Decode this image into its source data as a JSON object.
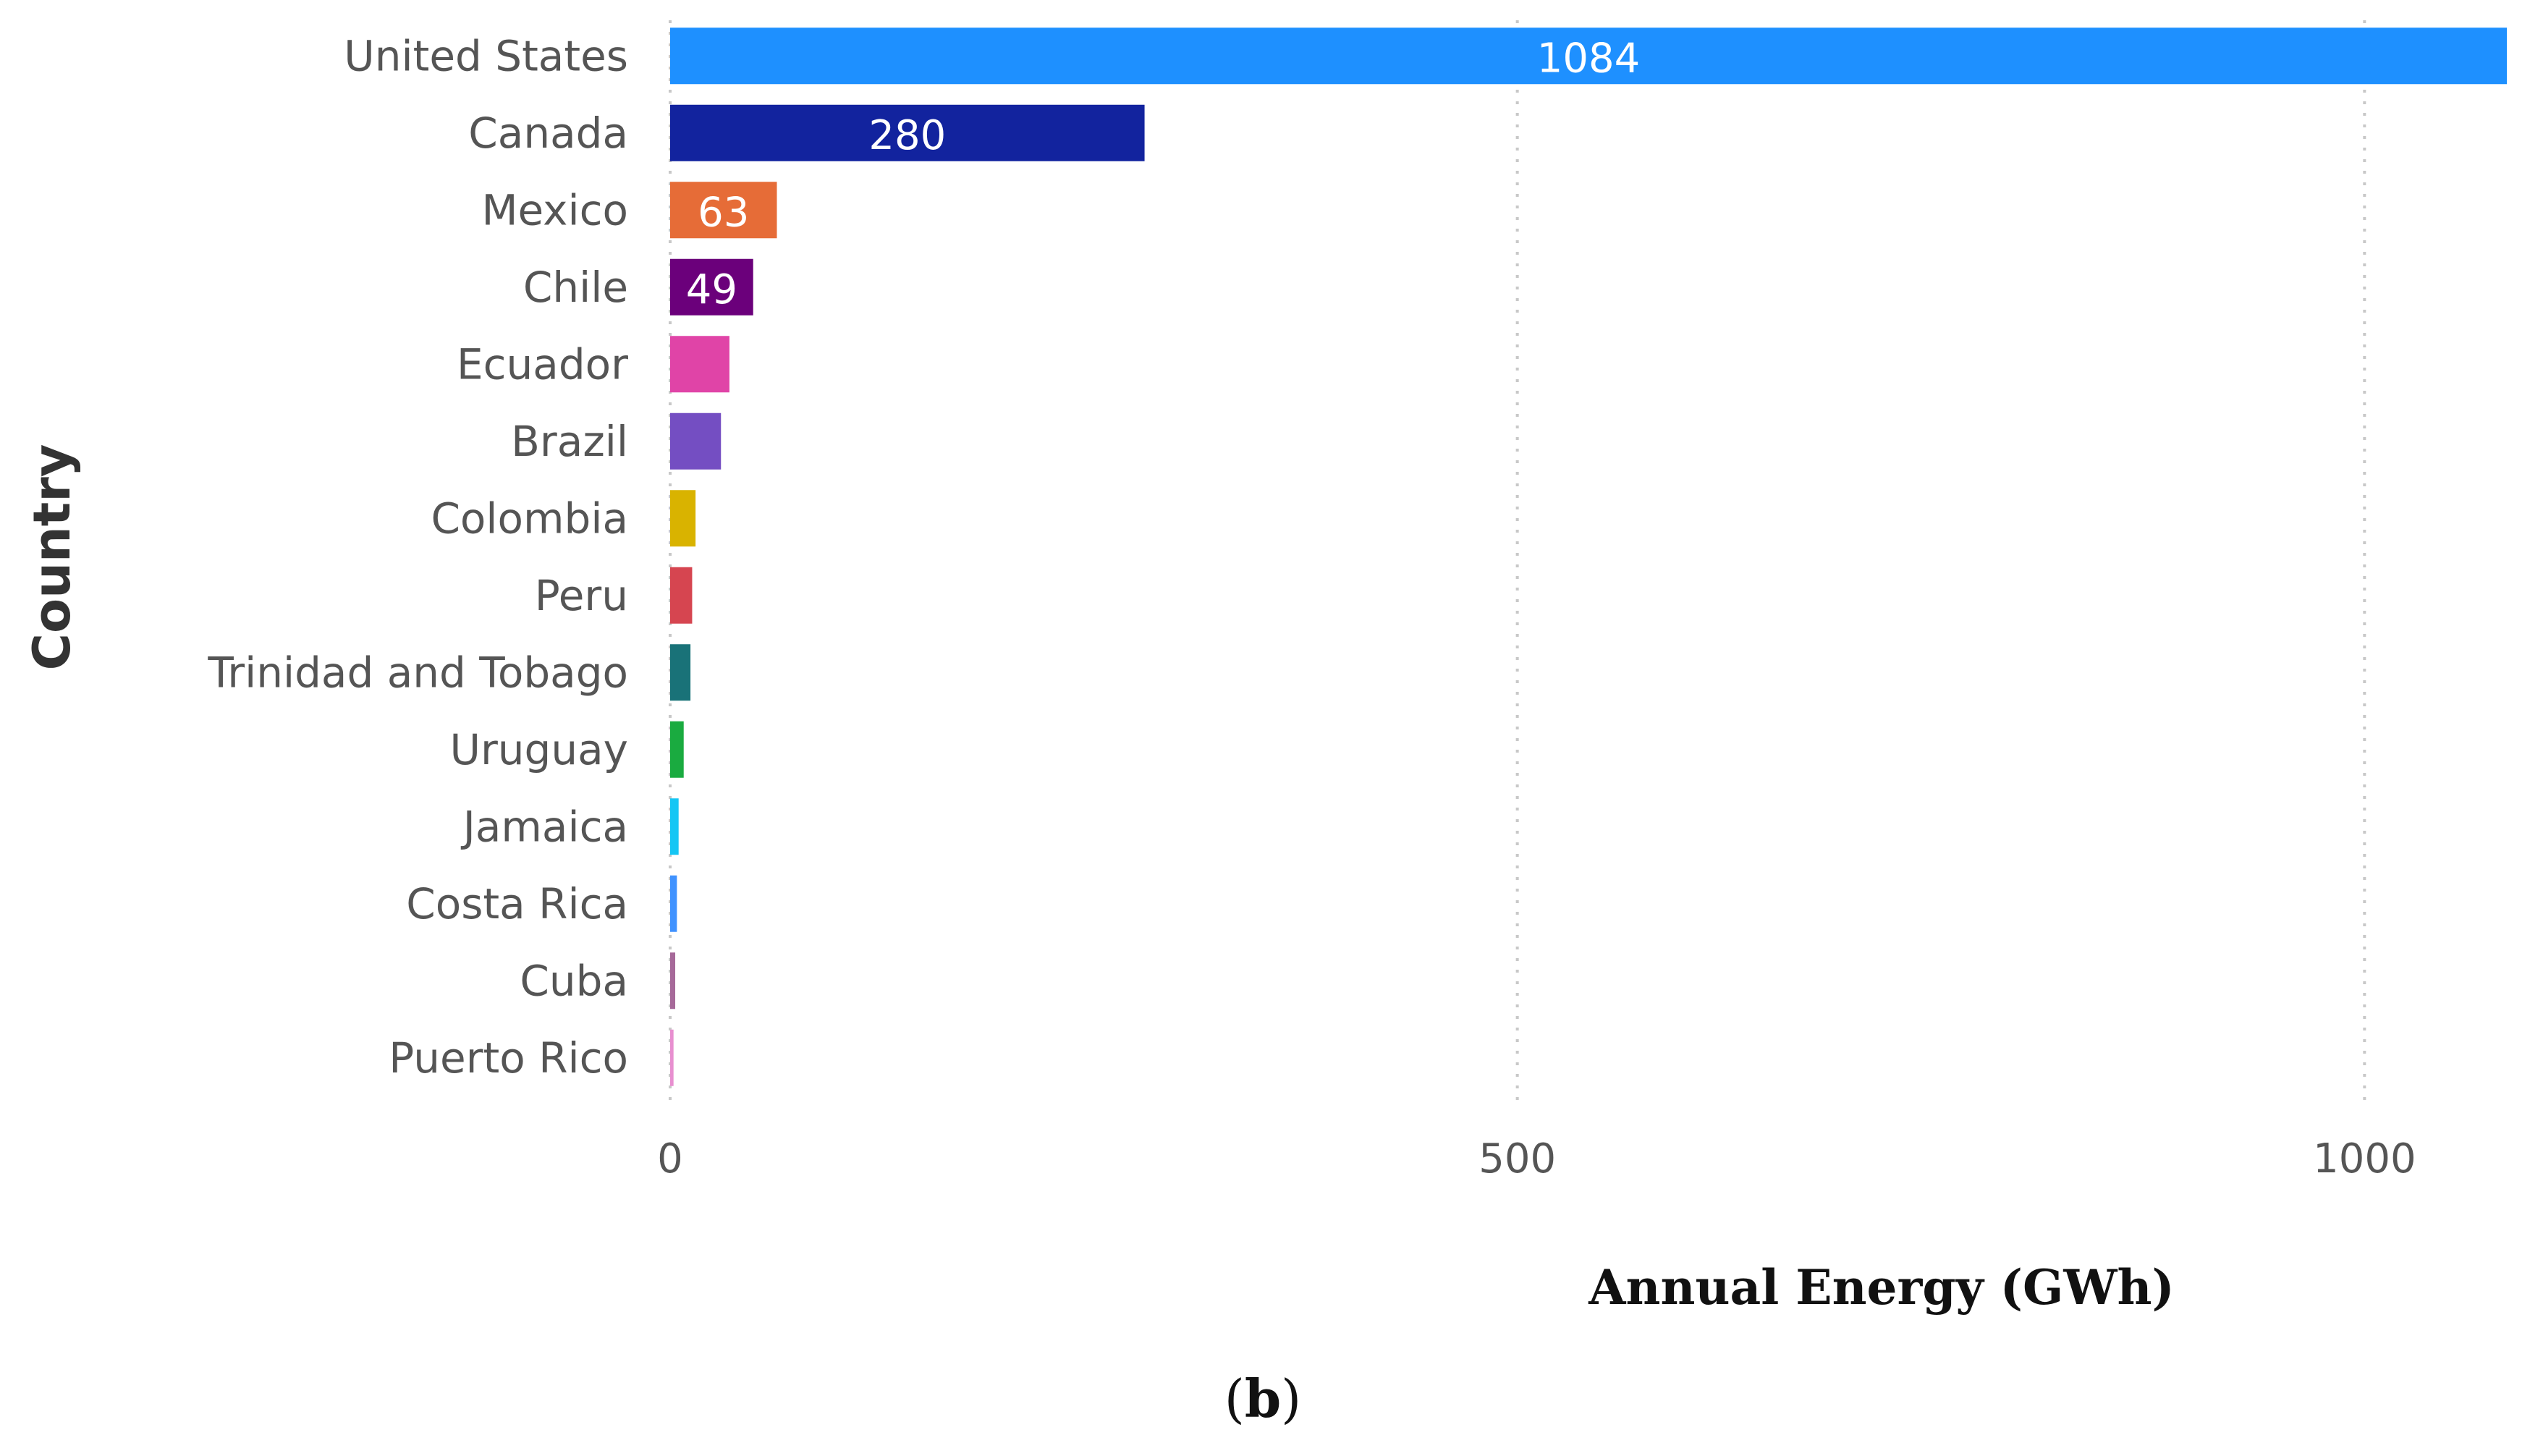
{
  "chart_data": {
    "type": "bar",
    "orientation": "horizontal",
    "categories": [
      "United States",
      "Canada",
      "Mexico",
      "Chile",
      "Ecuador",
      "Brazil",
      "Colombia",
      "Peru",
      "Trinidad and Tobago",
      "Uruguay",
      "Jamaica",
      "Costa Rica",
      "Cuba",
      "Puerto Rico"
    ],
    "values": [
      1084,
      280,
      63,
      49,
      35,
      30,
      15,
      13,
      12,
      8,
      5,
      4,
      3,
      2
    ],
    "data_labels": [
      "1084",
      "280",
      "63",
      "49",
      "",
      "",
      "",
      "",
      "",
      "",
      "",
      "",
      "",
      ""
    ],
    "colors": [
      "#1E90FF",
      "#12239E",
      "#E66C37",
      "#6B007B",
      "#E044A7",
      "#744EC2",
      "#D9B300",
      "#D64550",
      "#197278",
      "#1AAB40",
      "#15C6F4",
      "#4092FF",
      "#A66999",
      "#E88FD0"
    ],
    "xlabel": "Annual Energy (GWh)",
    "ylabel": "Country",
    "xlim": [
      0,
      1084
    ],
    "xticks": [
      0,
      500,
      1000
    ],
    "grid": "vertical-dotted",
    "caption_open": "(",
    "caption_letter": "b",
    "caption_close": ")"
  }
}
